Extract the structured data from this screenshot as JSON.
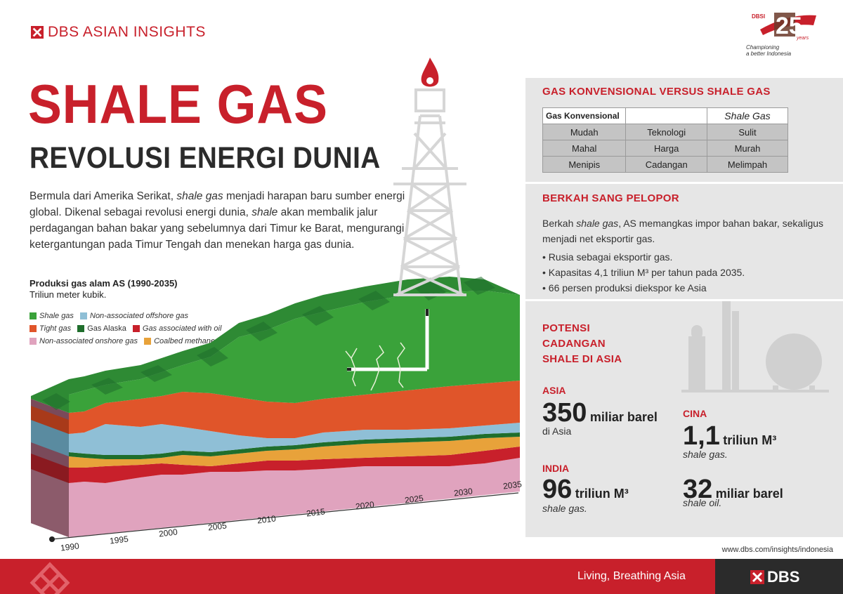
{
  "header": {
    "brand": "DBS ASIAN INSIGHTS",
    "badge": {
      "top": "DBSI",
      "years": "years",
      "line1": "Championing",
      "line2": "a better Indonesia"
    }
  },
  "title": "SHALE GAS",
  "subtitle": "REVOLUSI ENERGI DUNIA",
  "intro": {
    "p1": "Bermula dari Amerika Serikat, ",
    "i1": "shale gas",
    "p2": " menjadi harapan baru sumber energi global. Dikenal sebagai revolusi energi dunia, ",
    "i2": "shale",
    "p3": " akan membalik jalur perdagangan bahan bakar yang sebelumnya dari Timur ke Barat, mengurangi ketergantungan pada Timur Tengah dan menekan harga gas dunia."
  },
  "chart": {
    "title": "Produksi gas alam AS (1990-2035)",
    "unit": "Triliun meter kubik.",
    "legend": [
      {
        "label": "Shale gas",
        "color": "#3aa23a"
      },
      {
        "label": "Non-associated offshore gas",
        "color": "#8fbfd6"
      },
      {
        "label": "Tight gas",
        "color": "#e0552a"
      },
      {
        "label": "Gas Alaska",
        "color": "#1f6e2c"
      },
      {
        "label": "Gas associated with oil",
        "color": "#c8202b"
      },
      {
        "label": "Non-associated onshore gas",
        "color": "#e0a3be"
      },
      {
        "label": "Coalbed methane",
        "color": "#e8a23a"
      }
    ],
    "x_ticks": [
      "1990",
      "1995",
      "2000",
      "2005",
      "2010",
      "2015",
      "2020",
      "2025",
      "2030",
      "2035"
    ]
  },
  "comparison": {
    "title": "GAS KONVENSIONAL VERSUS SHALE GAS",
    "header": [
      "Gas Konvensional",
      "",
      "Shale Gas"
    ],
    "rows": [
      [
        "Mudah",
        "Teknologi",
        "Sulit"
      ],
      [
        "Mahal",
        "Harga",
        "Murah"
      ],
      [
        "Menipis",
        "Cadangan",
        "Melimpah"
      ]
    ]
  },
  "pioneer": {
    "title": "BERKAH SANG PELOPOR",
    "t1": "Berkah ",
    "ti": "shale gas",
    "t2": ", AS memangkas impor bahan bakar, sekaligus menjadi net eksportir gas.",
    "bullets": [
      "Rusia sebagai eksportir gas.",
      "Kapasitas 4,1 triliun M³ per tahun pada 2035.",
      "66 persen produksi diekspor ke Asia"
    ]
  },
  "potential": {
    "title_l1": "POTENSI",
    "title_l2": "CADANGAN",
    "title_l3": "SHALE DI ASIA",
    "asia": {
      "region": "ASIA",
      "value": "350",
      "unit": "miliar barel",
      "note": "di Asia"
    },
    "cina": {
      "region": "CINA",
      "value": "1,1",
      "unit": "triliun M³",
      "note": "shale gas."
    },
    "india": {
      "region": "INDIA",
      "value": "96",
      "unit": "triliun M³",
      "note": "shale gas."
    },
    "oil": {
      "value": "32",
      "unit": "miliar barel",
      "note": "shale oil."
    }
  },
  "url": "www.dbs.com/insights/indonesia",
  "footer": {
    "tagline": "Living, Breathing Asia",
    "logo": "DBS"
  }
}
